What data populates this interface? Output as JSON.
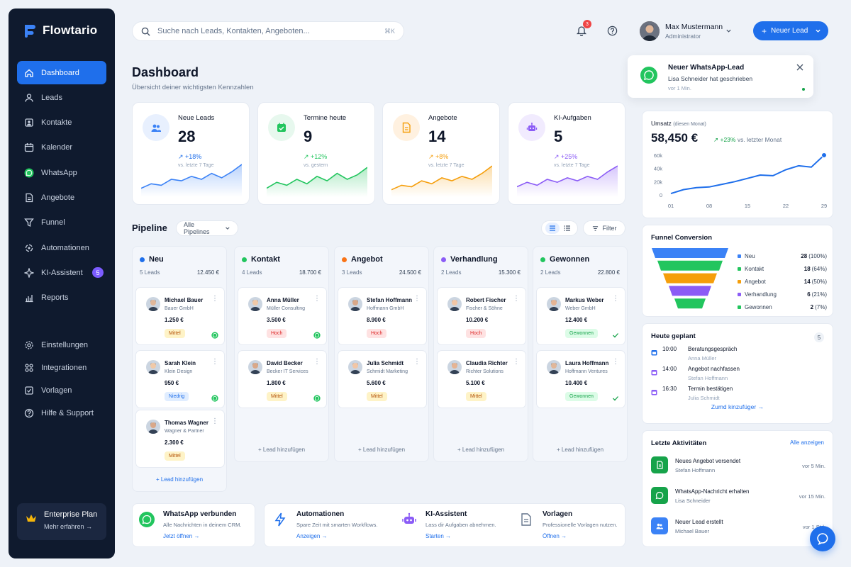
{
  "app": {
    "name": "Flowtario"
  },
  "sidebar": {
    "items": [
      {
        "label": "Dashboard",
        "icon": "home-icon"
      },
      {
        "label": "Leads",
        "icon": "leads-icon"
      },
      {
        "label": "Kontakte",
        "icon": "contacts-icon"
      },
      {
        "label": "Kalender",
        "icon": "calendar-icon"
      },
      {
        "label": "WhatsApp",
        "icon": "whatsapp-icon"
      },
      {
        "label": "Angebote",
        "icon": "document-icon"
      },
      {
        "label": "Funnel",
        "icon": "funnel-icon"
      },
      {
        "label": "Automationen",
        "icon": "automation-icon"
      },
      {
        "label": "KI-Assistent",
        "icon": "ai-icon",
        "badge": "5"
      },
      {
        "label": "Reports",
        "icon": "reports-icon"
      }
    ],
    "secondary": [
      {
        "label": "Einstellungen",
        "icon": "gear-icon"
      },
      {
        "label": "Integrationen",
        "icon": "integrations-icon"
      },
      {
        "label": "Vorlagen",
        "icon": "templates-icon"
      },
      {
        "label": "Hilfe & Support",
        "icon": "help-icon"
      }
    ],
    "plan": {
      "title": "Enterprise Plan",
      "link": "Mehr erfahren →"
    }
  },
  "topbar": {
    "search_placeholder": "Suche nach Leads, Kontakten, Angeboten...",
    "shortcut": "⌘K",
    "notifications": "3",
    "user": {
      "name": "Max Mustermann",
      "role": "Administrator"
    },
    "new_lead": "Neuer Lead"
  },
  "page": {
    "title": "Dashboard",
    "subtitle": "Übersicht deiner wichtigsten Kennzahlen"
  },
  "stats": [
    {
      "label": "Neue Leads",
      "value": "28",
      "delta": "↗ +18%",
      "comparison": "vs. letzte 7 Tage",
      "color": "#3b82f6",
      "trend": [
        0.2,
        0.35,
        0.3,
        0.5,
        0.45,
        0.6,
        0.5,
        0.7,
        0.55,
        0.75,
        1.0
      ]
    },
    {
      "label": "Termine heute",
      "value": "9",
      "delta": "↗ +12%",
      "comparison": "vs. gestern",
      "color": "#22c55e",
      "trend": [
        0.2,
        0.4,
        0.3,
        0.5,
        0.35,
        0.6,
        0.45,
        0.7,
        0.5,
        0.65,
        0.9
      ]
    },
    {
      "label": "Angebote",
      "value": "14",
      "delta": "↗ +8%",
      "comparison": "vs. letzte 7 Tage",
      "color": "#f59e0b",
      "trend": [
        0.15,
        0.3,
        0.25,
        0.45,
        0.35,
        0.55,
        0.45,
        0.6,
        0.5,
        0.7,
        0.95
      ]
    },
    {
      "label": "KI-Aufgaben",
      "value": "5",
      "delta": "↗ +25%",
      "comparison": "vs. letzte 7 Tage",
      "color": "#8b5cf6",
      "trend": [
        0.25,
        0.4,
        0.3,
        0.5,
        0.4,
        0.55,
        0.45,
        0.6,
        0.5,
        0.75,
        0.95
      ]
    }
  ],
  "pipeline": {
    "title": "Pipeline",
    "select": "Alle Pipelines",
    "filter": "Filter",
    "columns": [
      {
        "name": "Neu",
        "color": "#1f6feb",
        "count": "5 Leads",
        "sum": "12.450 €",
        "add": "+ Lead hinzufügen",
        "cards": [
          {
            "name": "Michael Bauer",
            "company": "Bauer GmbH",
            "amount": "1.250 €",
            "tag": "Mittel",
            "tag_type": "mittel",
            "icon": "whatsapp"
          },
          {
            "name": "Sarah Klein",
            "company": "Klein Design",
            "amount": "950 €",
            "tag": "Niedrig",
            "tag_type": "niedrig",
            "icon": "whatsapp"
          },
          {
            "name": "Thomas Wagner",
            "company": "Wagner & Partner",
            "amount": "2.300 €",
            "tag": "Mittel",
            "tag_type": "mittel",
            "icon": ""
          }
        ]
      },
      {
        "name": "Kontakt",
        "color": "#22c55e",
        "count": "4 Leads",
        "sum": "18.700 €",
        "add": "+ Lead hinzufügen",
        "cards": [
          {
            "name": "Anna Müller",
            "company": "Müller Consulting",
            "amount": "3.500 €",
            "tag": "Hoch",
            "tag_type": "hoch",
            "icon": "whatsapp"
          },
          {
            "name": "David Becker",
            "company": "Becker IT Services",
            "amount": "1.800 €",
            "tag": "Mittel",
            "tag_type": "mittel",
            "icon": "whatsapp"
          }
        ]
      },
      {
        "name": "Angebot",
        "color": "#f97316",
        "count": "3 Leads",
        "sum": "24.500 €",
        "add": "+ Lead hinzufügen",
        "cards": [
          {
            "name": "Stefan Hoffmann",
            "company": "Hoffmann GmbH",
            "amount": "8.900 €",
            "tag": "Hoch",
            "tag_type": "hoch",
            "icon": ""
          },
          {
            "name": "Julia Schmidt",
            "company": "Schmidt Marketing",
            "amount": "5.600 €",
            "tag": "Mittel",
            "tag_type": "mittel",
            "icon": ""
          }
        ]
      },
      {
        "name": "Verhandlung",
        "color": "#8b5cf6",
        "count": "2 Leads",
        "sum": "15.300 €",
        "add": "+ Lead hinzufügen",
        "cards": [
          {
            "name": "Robert Fischer",
            "company": "Fischer & Söhne",
            "amount": "10.200 €",
            "tag": "Hoch",
            "tag_type": "hoch",
            "icon": ""
          },
          {
            "name": "Claudia Richter",
            "company": "Richter Solutions",
            "amount": "5.100 €",
            "tag": "Mittel",
            "tag_type": "mittel",
            "icon": ""
          }
        ]
      },
      {
        "name": "Gewonnen",
        "color": "#22c55e",
        "count": "2 Leads",
        "sum": "22.800 €",
        "add": "+ Lead hinzufügen",
        "cards": [
          {
            "name": "Markus Weber",
            "company": "Weber GmbH",
            "amount": "12.400 €",
            "tag": "Gewonnen",
            "tag_type": "gewonnen",
            "icon": "check"
          },
          {
            "name": "Laura Hoffmann",
            "company": "Hoffmann Ventures",
            "amount": "10.400 €",
            "tag": "Gewonnen",
            "tag_type": "gewonnen",
            "icon": "check"
          }
        ]
      }
    ]
  },
  "features": [
    {
      "title": "WhatsApp verbunden",
      "subtitle": "Alle Nachrichten in deinem CRM.",
      "link": "Jetzt öffnen →",
      "icon": "whatsapp-icon"
    },
    {
      "title": "Automationen",
      "subtitle": "Spare Zeit mit smarten Workflows.",
      "link": "Anzeigen →",
      "icon": "bolt-icon"
    },
    {
      "title": "KI-Assistent",
      "subtitle": "Lass dir Aufgaben abnehmen.",
      "link": "Starten →",
      "icon": "robot-icon"
    },
    {
      "title": "Vorlagen",
      "subtitle": "Professionelle Vorlagen nutzen.",
      "link": "Öffnen →",
      "icon": "template-icon"
    }
  ],
  "toast": {
    "title": "Neuer WhatsApp-Lead",
    "message": "Lisa Schneider hat geschrieben",
    "time": "vor 1 Min."
  },
  "revenue": {
    "label": "Umsatz",
    "label_note": "(diesen Monat)",
    "value": "58,450 €",
    "delta": "↗ +23%",
    "comparison": "vs. letzter Monat",
    "chart_data": {
      "type": "line",
      "x": [
        "01",
        "04",
        "06",
        "08",
        "10",
        "12",
        "15",
        "17",
        "19",
        "22",
        "24",
        "26",
        "29"
      ],
      "xticks": [
        "01",
        "08",
        "15",
        "22",
        "29"
      ],
      "values": [
        2000,
        8000,
        11000,
        12000,
        16000,
        20000,
        25000,
        30000,
        29000,
        38000,
        44000,
        42000,
        60000
      ],
      "yticks": [
        "60k",
        "40k",
        "20k",
        "0"
      ],
      "ylim": [
        0,
        60000
      ],
      "color": "#1f6feb"
    }
  },
  "funnel": {
    "title": "Funnel Conversion",
    "stages": [
      {
        "label": "Neu",
        "value": "28",
        "pct": "(100%)",
        "color": "#3b82f6"
      },
      {
        "label": "Kontakt",
        "value": "18",
        "pct": "(64%)",
        "color": "#22c55e"
      },
      {
        "label": "Angebot",
        "value": "14",
        "pct": "(50%)",
        "color": "#f59e0b"
      },
      {
        "label": "Verhandlung",
        "value": "6",
        "pct": "(21%)",
        "color": "#8b5cf6"
      },
      {
        "label": "Gewonnen",
        "value": "2",
        "pct": "(7%)",
        "color": "#22c55e"
      }
    ]
  },
  "today": {
    "title": "Heute geplant",
    "count": "5",
    "link": "Zumd kinzufüger →",
    "events": [
      {
        "time": "10:00",
        "title": "Beratungsgespräch",
        "who": "Anna Müller",
        "color": "#1f6feb"
      },
      {
        "time": "14:00",
        "title": "Angebot nachfassen",
        "who": "Stefan Hoffmann",
        "color": "#8b5cf6"
      },
      {
        "time": "16:30",
        "title": "Termin bestätigen",
        "who": "Julia Schmidt",
        "color": "#8b5cf6"
      }
    ]
  },
  "activity": {
    "title": "Letzte Aktivitäten",
    "link": "Alle anzeigen",
    "items": [
      {
        "title": "Neues Angebot versendet",
        "who": "Stefan Hoffmann",
        "time": "vor 5 Min.",
        "color": "#16a34a",
        "icon": "document-icon"
      },
      {
        "title": "WhatsApp-Nachricht erhalten",
        "who": "Lisa Schneider",
        "time": "vor 15 Min.",
        "color": "#16a34a",
        "icon": "whatsapp-icon"
      },
      {
        "title": "Neuer Lead erstellt",
        "who": "Michael Bauer",
        "time": "vor 1 Std.",
        "color": "#3b82f6",
        "icon": "users-icon"
      }
    ]
  }
}
